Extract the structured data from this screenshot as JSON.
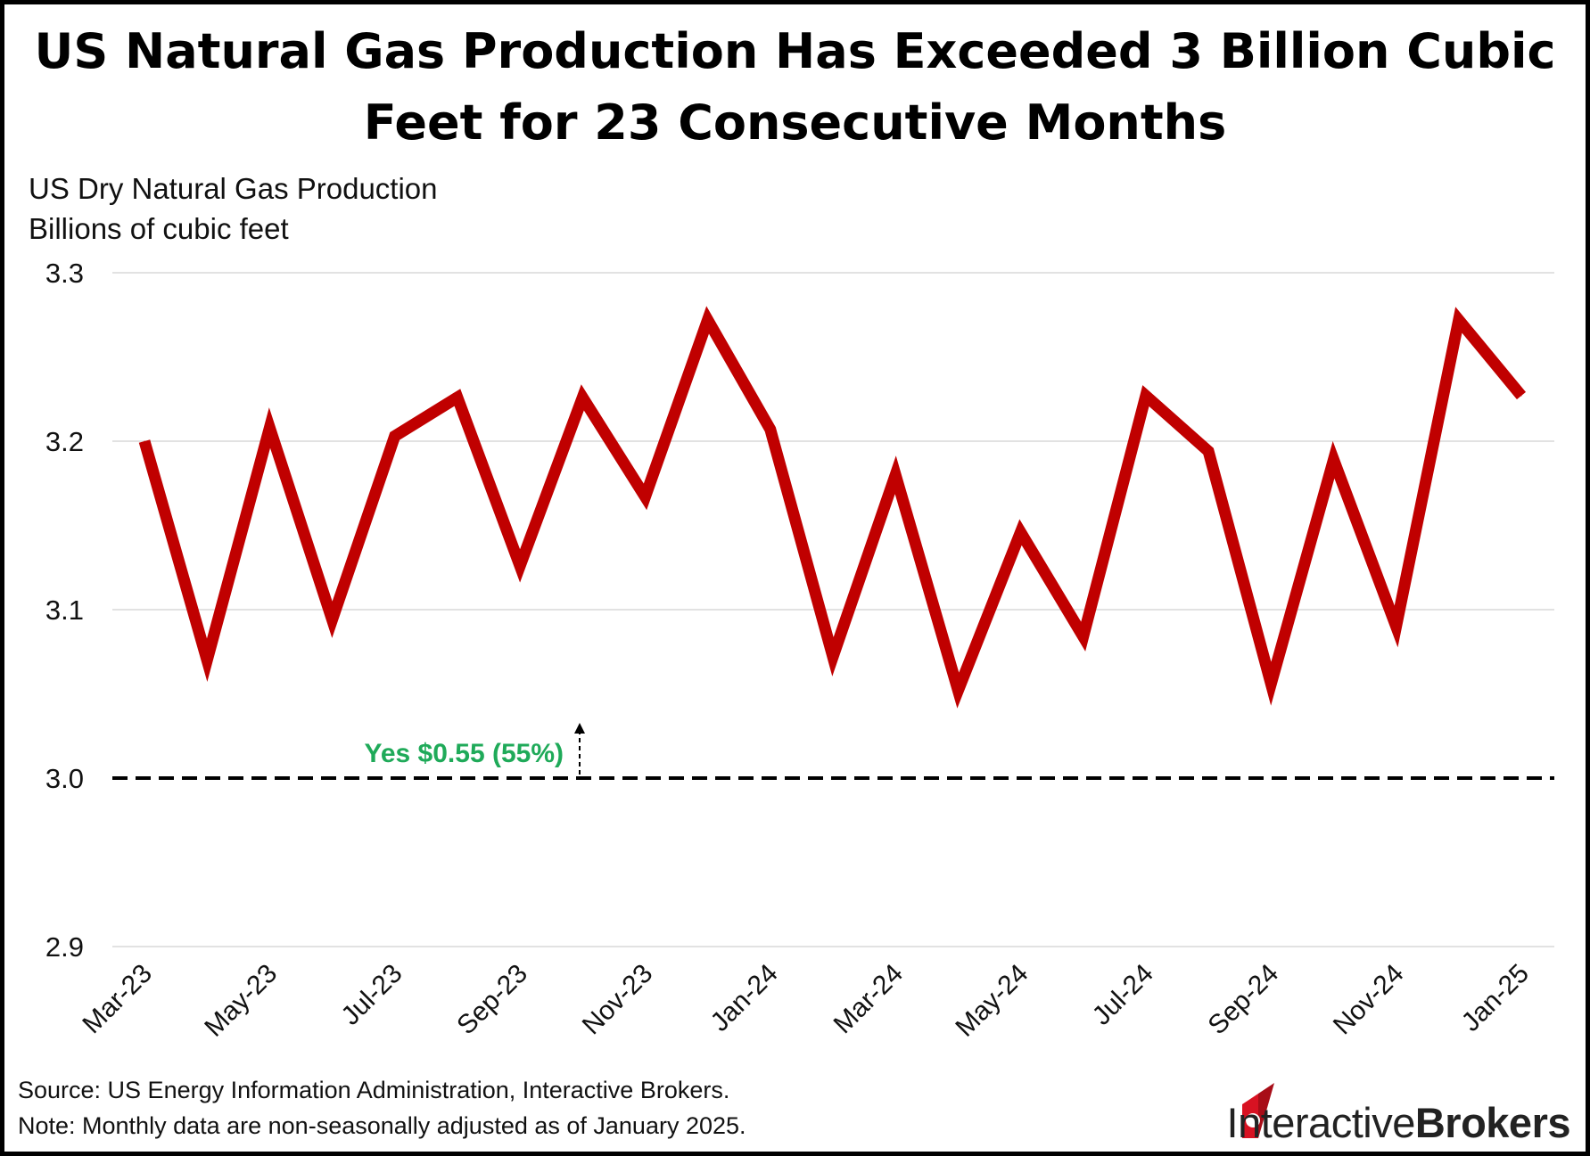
{
  "title": "US  Natural Gas Production Has Exceeded 3 Billion Cubic Feet for 23 Consecutive Months",
  "subtitle_lines": [
    "US Dry Natural Gas Production",
    "Billions of cubic feet"
  ],
  "footer": {
    "source": "Source: US Energy Information Administration, Interactive Brokers.",
    "note": "Note: Monthly data are non-seasonally  adjusted as of January 2025."
  },
  "brand": {
    "part1": "Interactive",
    "part2": "Brokers",
    "color": "#d81222"
  },
  "annotation": {
    "text": "Yes $0.55 (55%)",
    "color": "#1faa59",
    "at_value": 3.0
  },
  "chart_data": {
    "type": "line",
    "title": "US  Natural Gas Production Has Exceeded 3 Billion Cubic Feet for 23 Consecutive Months",
    "ylabel": "US Dry Natural Gas Production Billions of cubic feet",
    "xlabel": "",
    "ylim": [
      2.9,
      3.3
    ],
    "yticks": [
      "2.9",
      "3.0",
      "3.1",
      "3.2",
      "3.3"
    ],
    "ytick_values": [
      2.9,
      3.0,
      3.1,
      3.2,
      3.3
    ],
    "grid": true,
    "legend": "none",
    "x": [
      "Mar-23",
      "Apr-23",
      "May-23",
      "Jun-23",
      "Jul-23",
      "Aug-23",
      "Sep-23",
      "Oct-23",
      "Nov-23",
      "Dec-23",
      "Jan-24",
      "Feb-24",
      "Mar-24",
      "Apr-24",
      "May-24",
      "Jun-24",
      "Jul-24",
      "Aug-24",
      "Sep-24",
      "Oct-24",
      "Nov-24",
      "Dec-24",
      "Jan-25"
    ],
    "xtick_labels": [
      "Mar-23",
      "",
      "May-23",
      "",
      "Jul-23",
      "",
      "Sep-23",
      "",
      "Nov-23",
      "",
      "Jan-24",
      "",
      "Mar-24",
      "",
      "May-24",
      "",
      "Jul-24",
      "",
      "Sep-24",
      "",
      "Nov-24",
      "",
      "Jan-25"
    ],
    "series": [
      {
        "color": "#c00000",
        "values": [
          3.2,
          3.07,
          3.208,
          3.094,
          3.203,
          3.226,
          3.126,
          3.226,
          3.167,
          3.272,
          3.207,
          3.072,
          3.18,
          3.052,
          3.146,
          3.084,
          3.227,
          3.194,
          3.056,
          3.189,
          3.09,
          3.272,
          3.227
        ]
      }
    ],
    "reference_line": {
      "value": 3.0,
      "style": "dashed",
      "color": "#000000"
    }
  }
}
